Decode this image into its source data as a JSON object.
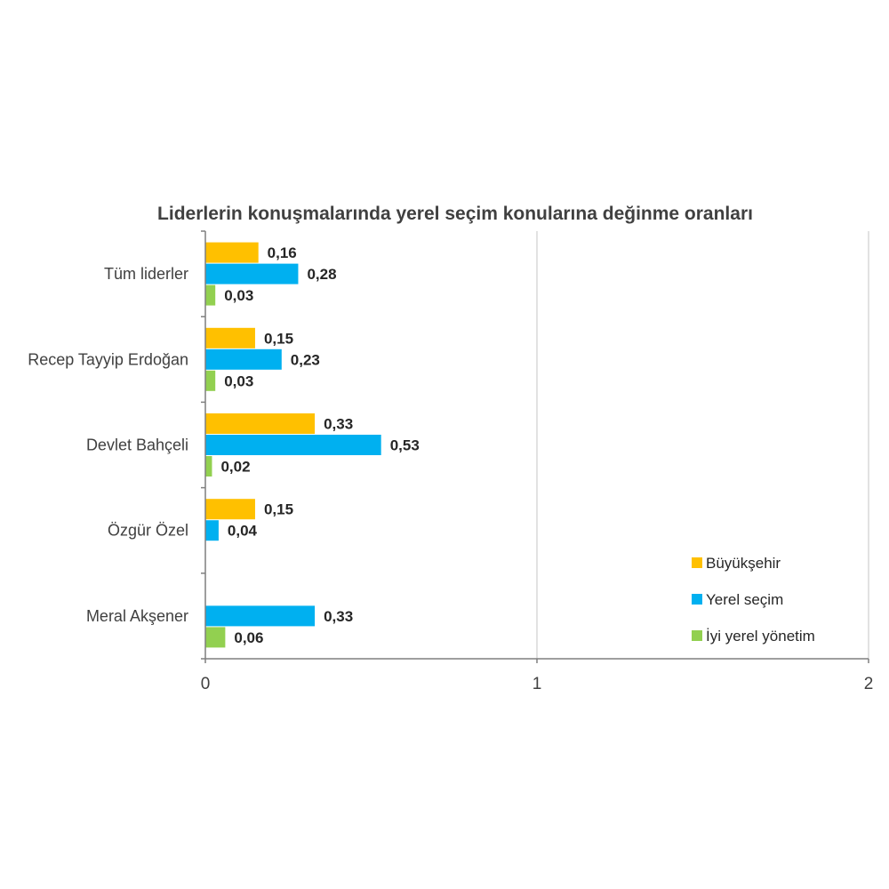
{
  "chart_data": {
    "type": "bar",
    "orientation": "horizontal",
    "title": "Liderlerin konuşmalarında yerel seçim konularına değinme oranları",
    "categories": [
      "Tüm liderler",
      "Recep Tayyip Erdoğan",
      "Devlet Bahçeli",
      "Özgür Özel",
      "Meral Akşener"
    ],
    "series": [
      {
        "name": "Büyükşehir",
        "color": "#FFC000",
        "values": [
          0.16,
          0.15,
          0.33,
          0.15,
          null
        ],
        "labels": [
          "0,16",
          "0,15",
          "0,33",
          "0,15",
          ""
        ]
      },
      {
        "name": "Yerel seçim",
        "color": "#00B0F0",
        "values": [
          0.28,
          0.23,
          0.53,
          0.04,
          0.33
        ],
        "labels": [
          "0,28",
          "0,23",
          "0,53",
          "0,04",
          "0,33"
        ]
      },
      {
        "name": "İyi yerel yönetim",
        "color": "#92D050",
        "values": [
          0.03,
          0.03,
          0.02,
          null,
          0.06
        ],
        "labels": [
          "0,03",
          "0,03",
          "0,02",
          "",
          "0,06"
        ]
      }
    ],
    "xlim": [
      0,
      2
    ],
    "x_ticks": [
      0,
      1,
      2
    ],
    "x_tick_labels": [
      "0",
      "1",
      "2"
    ],
    "grid": true,
    "legend_position": "bottom-right"
  }
}
